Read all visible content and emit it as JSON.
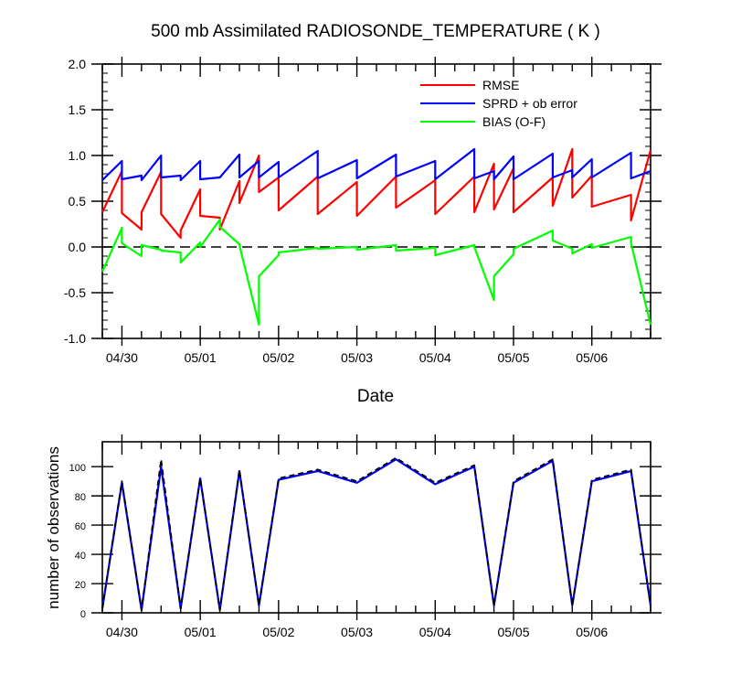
{
  "title": "500 mb Assimilated RADIOSONDE_TEMPERATURE ( K )",
  "chart_data": [
    {
      "type": "line",
      "xlabel": "Date",
      "ylabel": "",
      "ylim": [
        -1.0,
        2.0
      ],
      "yticks": [
        "2.0",
        "1.5",
        "1.0",
        "0.5",
        "0.0",
        "-0.5",
        "-1.0"
      ],
      "xtick_labels": [
        "04/30",
        "05/01",
        "05/02",
        "05/03",
        "05/04",
        "05/05",
        "05/06"
      ],
      "zero_line": "dashed",
      "legend_placement": "top-right",
      "x": [
        "04/29 18Z",
        "04/30 00Z",
        "04/30 00Z",
        "04/30 06Z",
        "04/30 06Z",
        "04/30 12Z",
        "04/30 12Z",
        "04/30 18Z",
        "04/30 18Z",
        "05/01 00Z",
        "05/01 00Z",
        "05/01 06Z",
        "05/01 06Z",
        "05/01 12Z",
        "05/01 12Z",
        "05/01 18Z",
        "05/01 18Z",
        "05/02 00Z",
        "05/02 00Z",
        "05/02 12Z",
        "05/02 12Z",
        "05/03 00Z",
        "05/03 00Z",
        "05/03 12Z",
        "05/03 12Z",
        "05/04 00Z",
        "05/04 00Z",
        "05/04 12Z",
        "05/04 12Z",
        "05/04 18Z",
        "05/04 18Z",
        "05/05 00Z",
        "05/05 00Z",
        "05/05 12Z",
        "05/05 12Z",
        "05/05 18Z",
        "05/05 18Z",
        "05/06 00Z",
        "05/06 00Z",
        "05/06 12Z",
        "05/06 12Z",
        "05/06 18Z"
      ],
      "series": [
        {
          "name": "RMSE",
          "color": "#ff0000",
          "values": [
            0.38,
            0.83,
            0.37,
            0.19,
            0.38,
            0.82,
            0.36,
            0.1,
            0.18,
            0.63,
            0.34,
            0.32,
            0.19,
            0.72,
            0.48,
            1.0,
            0.6,
            0.76,
            0.4,
            0.77,
            0.36,
            0.71,
            0.34,
            0.77,
            0.43,
            0.73,
            0.36,
            0.77,
            0.38,
            0.91,
            0.41,
            0.86,
            0.38,
            0.76,
            0.45,
            1.07,
            0.54,
            0.78,
            0.44,
            0.57,
            0.29,
            1.06
          ]
        },
        {
          "name": "SPRD + ob error",
          "color": "#0000ff",
          "values": [
            0.73,
            0.94,
            0.74,
            0.78,
            0.73,
            1.0,
            0.76,
            0.78,
            0.73,
            0.94,
            0.74,
            0.76,
            0.76,
            1.01,
            0.76,
            0.94,
            0.76,
            0.93,
            0.76,
            1.05,
            0.75,
            0.95,
            0.75,
            1.01,
            0.77,
            0.94,
            0.74,
            1.07,
            0.75,
            0.83,
            0.74,
            0.99,
            0.74,
            1.02,
            0.76,
            0.84,
            0.76,
            0.96,
            0.76,
            1.03,
            0.75,
            0.83
          ]
        },
        {
          "name": "BIAS (O-F)",
          "color": "#00ff00",
          "values": [
            -0.27,
            0.21,
            0.04,
            -0.1,
            0.02,
            -0.03,
            -0.04,
            -0.06,
            -0.17,
            0.05,
            0.0,
            0.3,
            0.22,
            0.03,
            0.02,
            -0.85,
            -0.32,
            -0.09,
            -0.06,
            -0.01,
            -0.02,
            0.0,
            -0.03,
            0.02,
            -0.04,
            -0.01,
            -0.09,
            0.02,
            0.0,
            -0.58,
            -0.32,
            -0.08,
            -0.02,
            0.18,
            0.07,
            -0.02,
            -0.07,
            0.03,
            -0.01,
            0.11,
            0.04,
            -0.85
          ]
        }
      ]
    },
    {
      "type": "line",
      "xlabel": "",
      "ylabel": "number of observations",
      "ylim": [
        0,
        117
      ],
      "yticks": [
        "0",
        "20",
        "40",
        "60",
        "80",
        "100"
      ],
      "xtick_labels": [
        "04/30",
        "05/01",
        "05/02",
        "05/03",
        "05/04",
        "05/05",
        "05/06"
      ],
      "x": [
        "04/29 18Z",
        "04/30 00Z",
        "04/30 06Z",
        "04/30 12Z",
        "04/30 18Z",
        "05/01 00Z",
        "05/01 06Z",
        "05/01 12Z",
        "05/01 18Z",
        "05/02 00Z",
        "05/02 12Z",
        "05/03 00Z",
        "05/03 12Z",
        "05/04 00Z",
        "05/04 12Z",
        "05/04 18Z",
        "05/05 00Z",
        "05/05 12Z",
        "05/05 18Z",
        "05/06 00Z",
        "05/06 12Z",
        "05/06 18Z"
      ],
      "series": [
        {
          "color": "#0000ff",
          "style": "solid",
          "values": [
            3,
            89,
            2,
            100,
            3,
            92,
            2,
            97,
            5,
            91,
            97,
            89,
            105,
            88,
            100,
            5,
            89,
            104,
            5,
            90,
            97,
            5
          ]
        },
        {
          "color": "#000000",
          "style": "dashed",
          "values": [
            3,
            90,
            2,
            105,
            3,
            92,
            2,
            98,
            5,
            92,
            98,
            90,
            106,
            89,
            101,
            5,
            90,
            105,
            5,
            91,
            98,
            5
          ]
        }
      ]
    }
  ]
}
